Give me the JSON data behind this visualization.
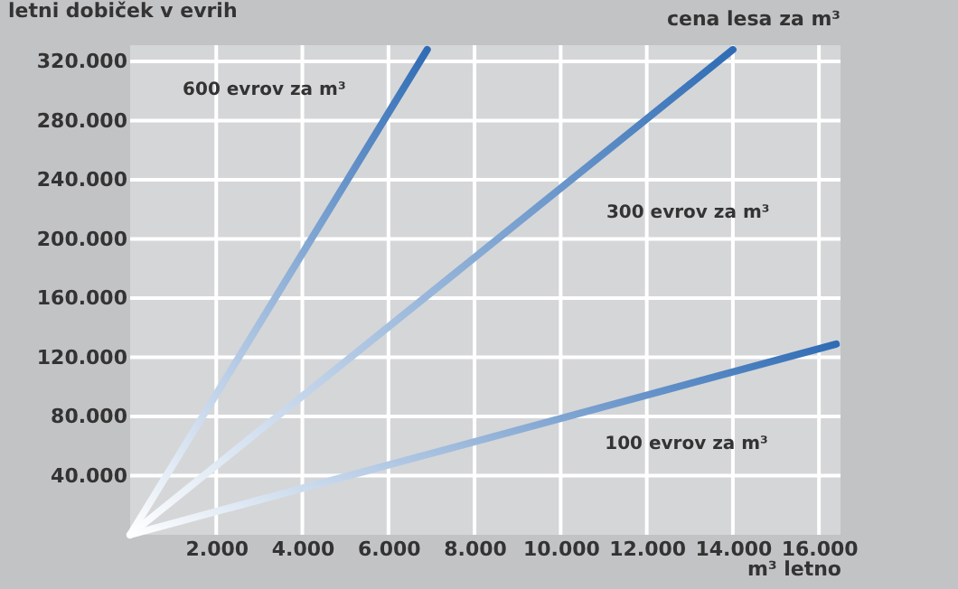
{
  "chart_data": {
    "type": "line",
    "ylabel": "letni dobiček v evrih",
    "xlabel": "m³ letno",
    "legend_title": "cena lesa za m³",
    "series": [
      {
        "name": "600 evrov za m³",
        "color": "#2f6cb5",
        "x": [
          0,
          6900
        ],
        "values": [
          0,
          328000
        ]
      },
      {
        "name": "300 evrov za m³",
        "color": "#2f6cb5",
        "x": [
          0,
          14000
        ],
        "values": [
          0,
          328000
        ]
      },
      {
        "name": "100 evrov za m³",
        "color": "#2f6cb5",
        "x": [
          0,
          16400
        ],
        "values": [
          0,
          129000
        ]
      }
    ],
    "xlim": [
      0,
      16500
    ],
    "ylim": [
      0,
      331000
    ],
    "xticks": [
      {
        "value": 2000,
        "label": "2.000"
      },
      {
        "value": 4000,
        "label": "4.000"
      },
      {
        "value": 6000,
        "label": "6.000"
      },
      {
        "value": 8000,
        "label": "8.000"
      },
      {
        "value": 10000,
        "label": "10.000"
      },
      {
        "value": 12000,
        "label": "12.000"
      },
      {
        "value": 14000,
        "label": "14.000"
      },
      {
        "value": 16000,
        "label": "16.000"
      }
    ],
    "yticks": [
      {
        "value": 40000,
        "label": "40.000"
      },
      {
        "value": 80000,
        "label": "80.000"
      },
      {
        "value": 120000,
        "label": "120.000"
      },
      {
        "value": 160000,
        "label": "160.000"
      },
      {
        "value": 200000,
        "label": "200.000"
      },
      {
        "value": 240000,
        "label": "240.000"
      },
      {
        "value": 280000,
        "label": "280.000"
      },
      {
        "value": 320000,
        "label": "320.000"
      }
    ],
    "grid": true,
    "marker": "none",
    "line_style": "solid"
  }
}
